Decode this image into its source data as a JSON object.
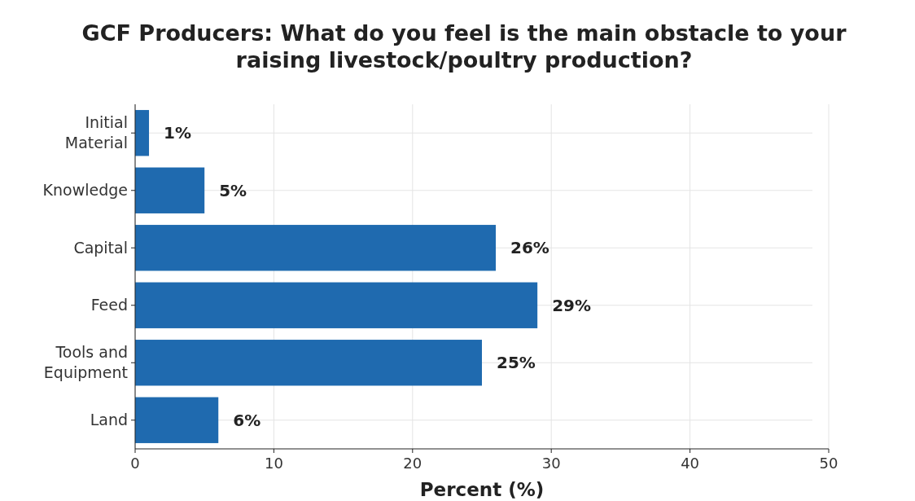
{
  "chart_data": {
    "type": "bar",
    "orientation": "horizontal",
    "title": "GCF Producers: What do you feel is the main obstacle to your raising livestock/poultry production?",
    "xlabel": "Percent (%)",
    "categories": [
      "Initial Material",
      "Knowledge",
      "Capital",
      "Feed",
      "Tools and Equipment",
      "Land"
    ],
    "values": [
      1,
      5,
      26,
      29,
      25,
      6
    ],
    "value_labels": [
      "1%",
      "5%",
      "26%",
      "29%",
      "25%",
      "6%"
    ],
    "color": "#1f6aaf",
    "xlim": [
      0,
      50
    ],
    "xticks": [
      0,
      10,
      20,
      30,
      40,
      50
    ],
    "grid": true
  }
}
